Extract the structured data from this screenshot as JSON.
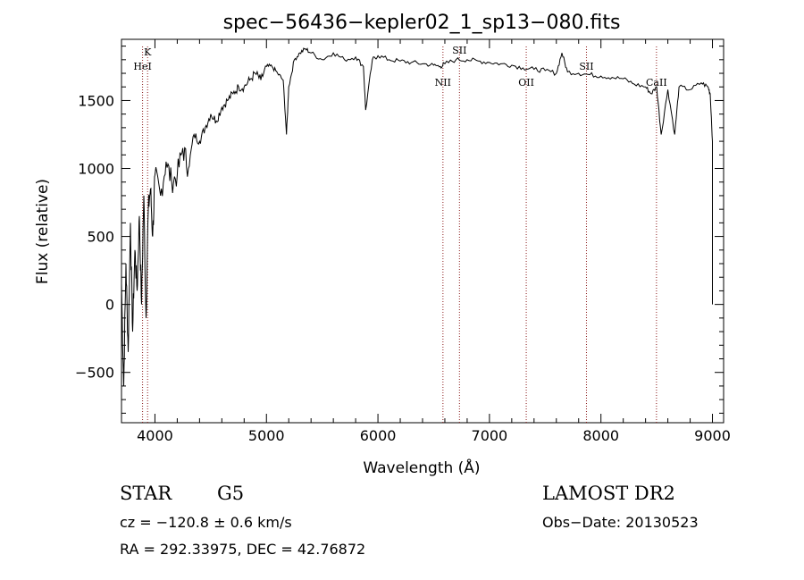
{
  "chart_data": {
    "type": "line",
    "title": "spec−56436−kepler02_1_sp13−080.fits",
    "xlabel": "Wavelength (Å)",
    "ylabel": "Flux (relative)",
    "xlim": [
      3700,
      9100
    ],
    "ylim": [
      -870,
      1950
    ],
    "x_ticks": [
      4000,
      5000,
      6000,
      7000,
      8000,
      9000
    ],
    "y_ticks": [
      -500,
      0,
      500,
      1000,
      1500
    ],
    "grid": false,
    "line_color": "#000000",
    "marker_color": "#8b1a1a",
    "spectrum": {
      "x": [
        3700,
        3720,
        3740,
        3760,
        3780,
        3800,
        3820,
        3840,
        3860,
        3880,
        3900,
        3920,
        3940,
        3960,
        3980,
        4000,
        4050,
        4100,
        4150,
        4200,
        4250,
        4300,
        4350,
        4400,
        4450,
        4500,
        4550,
        4600,
        4650,
        4700,
        4750,
        4800,
        4850,
        4900,
        4950,
        5000,
        5050,
        5100,
        5150,
        5180,
        5200,
        5250,
        5300,
        5350,
        5400,
        5500,
        5600,
        5700,
        5800,
        5870,
        5890,
        5950,
        6000,
        6100,
        6200,
        6300,
        6400,
        6500,
        6560,
        6600,
        6700,
        6800,
        6900,
        7000,
        7100,
        7200,
        7300,
        7400,
        7500,
        7600,
        7650,
        7700,
        7800,
        7900,
        8000,
        8100,
        8200,
        8300,
        8400,
        8450,
        8500,
        8540,
        8600,
        8662,
        8700,
        8800,
        8900,
        8960,
        8980,
        9000
      ],
      "y": [
        150,
        -600,
        300,
        -350,
        600,
        -200,
        400,
        100,
        650,
        0,
        800,
        -100,
        700,
        850,
        500,
        950,
        800,
        1050,
        900,
        950,
        1150,
        1000,
        1250,
        1200,
        1300,
        1400,
        1350,
        1450,
        1500,
        1550,
        1600,
        1600,
        1650,
        1700,
        1650,
        1750,
        1750,
        1700,
        1650,
        1250,
        1600,
        1800,
        1850,
        1880,
        1850,
        1800,
        1850,
        1800,
        1820,
        1750,
        1430,
        1800,
        1830,
        1800,
        1790,
        1780,
        1770,
        1760,
        1750,
        1770,
        1800,
        1800,
        1790,
        1780,
        1770,
        1760,
        1740,
        1730,
        1720,
        1700,
        1850,
        1710,
        1700,
        1690,
        1680,
        1670,
        1660,
        1620,
        1600,
        1550,
        1600,
        1250,
        1580,
        1250,
        1600,
        1580,
        1630,
        1600,
        1550,
        1200
      ]
    },
    "lines": [
      {
        "name": "K",
        "x": 3934
      },
      {
        "name": "HeI",
        "x": 3889
      },
      {
        "name": "NII",
        "x": 6583
      },
      {
        "name": "SII",
        "x": 6731
      },
      {
        "name": "OII",
        "x": 7330
      },
      {
        "name": "SII",
        "x": 7870
      },
      {
        "name": "CaII",
        "x": 8498
      }
    ]
  },
  "footer": {
    "class": "STAR",
    "subclass": "G5",
    "survey": "LAMOST DR2",
    "cz": "cz = −120.8 ± 0.6 km/s",
    "obs_date": "Obs−Date: 20130523",
    "coords": "RA = 292.33975, DEC =  42.76872"
  }
}
